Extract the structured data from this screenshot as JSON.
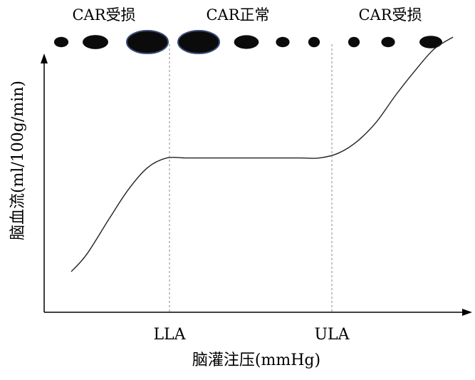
{
  "chart_data": {
    "type": "line",
    "title": "",
    "xlabel": "脑灌注压(mmHg)",
    "ylabel": "脑血流(ml/100g/min)",
    "x_markers": [
      "LLA",
      "ULA"
    ],
    "regions": [
      "CAR受损",
      "CAR正常",
      "CAR受损"
    ],
    "series": [
      {
        "x": [
          0.0,
          0.04,
          0.1,
          0.15,
          0.2,
          0.25,
          0.3,
          0.35,
          0.4,
          0.45,
          0.5,
          0.55,
          0.6,
          0.65,
          0.7,
          0.75,
          0.8,
          0.85,
          0.9,
          0.95,
          1.0
        ],
        "values": [
          0.13,
          0.2,
          0.35,
          0.47,
          0.56,
          0.6,
          0.6,
          0.6,
          0.6,
          0.6,
          0.6,
          0.6,
          0.6,
          0.6,
          0.62,
          0.67,
          0.75,
          0.86,
          0.96,
          1.05,
          1.1
        ]
      }
    ],
    "vessel_sizes": [
      0.35,
      0.62,
      1.0,
      1.0,
      0.6,
      0.33,
      0.28,
      0.28,
      0.33,
      0.55
    ],
    "grid": false,
    "legend": "none"
  }
}
